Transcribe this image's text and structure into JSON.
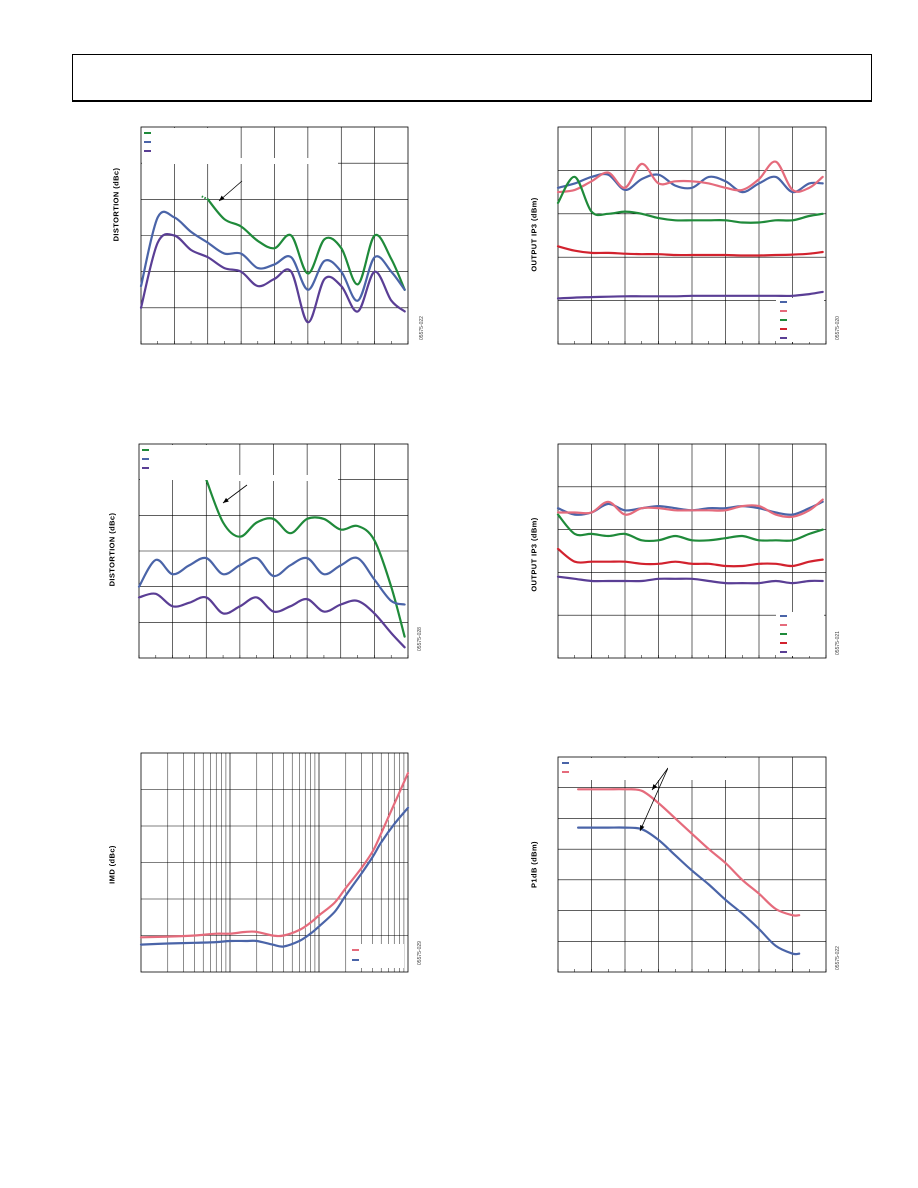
{
  "page": {
    "figure_ids": [
      "05575-022",
      "05575-020",
      "05575-028",
      "05575-021",
      "05575-029",
      "05575-022"
    ]
  },
  "colors": {
    "green": "#1f8a3a",
    "blue": "#4a64a8",
    "purple": "#5a3e95",
    "pink": "#e56b7c",
    "red": "#d2222e",
    "grid": "#000000"
  },
  "chart_data": [
    {
      "id": "distortion-top",
      "type": "line",
      "ylabel": "DISTORTION (dBc)",
      "grid": true,
      "legend_position": "top-left",
      "x": [
        0,
        0.5,
        1,
        1.5,
        2,
        2.5,
        3,
        3.5,
        4,
        4.5,
        5,
        5.5,
        6,
        6.5,
        7,
        7.5,
        7.9
      ],
      "ylim": [
        0,
        6
      ],
      "series": [
        {
          "color": "green",
          "values": [
            null,
            null,
            null,
            null,
            4.0,
            3.45,
            3.25,
            2.85,
            2.65,
            3.0,
            1.95,
            2.9,
            2.65,
            1.65,
            3.0,
            2.35,
            1.5
          ]
        },
        {
          "color": "blue",
          "values": [
            1.6,
            3.5,
            3.5,
            3.1,
            2.8,
            2.5,
            2.5,
            2.1,
            2.2,
            2.4,
            1.5,
            2.3,
            2.0,
            1.2,
            2.4,
            2.0,
            1.5
          ]
        },
        {
          "color": "purple",
          "values": [
            1.0,
            2.8,
            3.0,
            2.6,
            2.4,
            2.1,
            2.0,
            1.6,
            1.8,
            2.0,
            0.6,
            1.8,
            1.6,
            0.9,
            2.0,
            1.2,
            0.9
          ]
        }
      ]
    },
    {
      "id": "oip3-top",
      "type": "line",
      "ylabel": "OUTPUT IP3 (dBm)",
      "grid": true,
      "legend_position": "bottom-right",
      "x": [
        0,
        0.5,
        1,
        1.5,
        2,
        2.5,
        3,
        3.5,
        4,
        4.5,
        5,
        5.5,
        6,
        6.5,
        7,
        7.5,
        7.9
      ],
      "ylim": [
        0,
        5
      ],
      "series": [
        {
          "color": "blue",
          "values": [
            3.6,
            3.7,
            3.85,
            3.9,
            3.55,
            3.8,
            3.9,
            3.65,
            3.6,
            3.85,
            3.75,
            3.5,
            3.7,
            3.85,
            3.5,
            3.7,
            3.7
          ]
        },
        {
          "color": "pink",
          "values": [
            3.5,
            3.55,
            3.75,
            3.95,
            3.6,
            4.15,
            3.7,
            3.75,
            3.75,
            3.7,
            3.6,
            3.55,
            3.8,
            4.2,
            3.55,
            3.6,
            3.85
          ]
        },
        {
          "color": "green",
          "values": [
            3.25,
            3.85,
            3.05,
            3.0,
            3.05,
            3.0,
            2.9,
            2.85,
            2.85,
            2.85,
            2.85,
            2.8,
            2.8,
            2.85,
            2.85,
            2.95,
            3.0
          ]
        },
        {
          "color": "red",
          "values": [
            2.25,
            2.15,
            2.1,
            2.1,
            2.08,
            2.07,
            2.07,
            2.05,
            2.05,
            2.05,
            2.05,
            2.04,
            2.04,
            2.05,
            2.06,
            2.08,
            2.12
          ]
        },
        {
          "color": "purple",
          "values": [
            1.05,
            1.07,
            1.08,
            1.09,
            1.1,
            1.1,
            1.1,
            1.1,
            1.11,
            1.11,
            1.11,
            1.11,
            1.11,
            1.11,
            1.11,
            1.15,
            1.2
          ]
        }
      ]
    },
    {
      "id": "distortion-mid",
      "type": "line",
      "ylabel": "DISTORTION (dBc)",
      "grid": true,
      "legend_position": "top-left",
      "x": [
        0,
        0.5,
        1,
        1.5,
        2,
        2.5,
        3,
        3.5,
        4,
        4.5,
        5,
        5.5,
        6,
        6.5,
        7,
        7.5,
        7.9
      ],
      "ylim": [
        0,
        6
      ],
      "series": [
        {
          "color": "green",
          "values": [
            null,
            null,
            null,
            null,
            5.0,
            3.8,
            3.4,
            3.8,
            3.9,
            3.5,
            3.9,
            3.9,
            3.6,
            3.7,
            3.3,
            2.0,
            0.6
          ]
        },
        {
          "color": "blue",
          "values": [
            2.0,
            2.75,
            2.35,
            2.6,
            2.8,
            2.35,
            2.6,
            2.8,
            2.3,
            2.6,
            2.8,
            2.35,
            2.6,
            2.8,
            2.2,
            1.6,
            1.5
          ]
        },
        {
          "color": "purple",
          "values": [
            1.7,
            1.8,
            1.45,
            1.55,
            1.7,
            1.25,
            1.45,
            1.7,
            1.3,
            1.45,
            1.65,
            1.3,
            1.5,
            1.6,
            1.25,
            0.7,
            0.3
          ]
        }
      ]
    },
    {
      "id": "oip3-mid",
      "type": "line",
      "ylabel": "OUTPUT IP3 (dBm)",
      "grid": true,
      "legend_position": "bottom-right",
      "x": [
        0,
        0.5,
        1,
        1.5,
        2,
        2.5,
        3,
        3.5,
        4,
        4.5,
        5,
        5.5,
        6,
        6.5,
        7,
        7.5,
        7.9
      ],
      "ylim": [
        0,
        5
      ],
      "series": [
        {
          "color": "blue",
          "values": [
            3.5,
            3.35,
            3.4,
            3.6,
            3.45,
            3.5,
            3.55,
            3.5,
            3.45,
            3.5,
            3.5,
            3.55,
            3.5,
            3.4,
            3.35,
            3.5,
            3.65
          ]
        },
        {
          "color": "pink",
          "values": [
            3.4,
            3.4,
            3.4,
            3.65,
            3.35,
            3.5,
            3.5,
            3.45,
            3.45,
            3.45,
            3.45,
            3.55,
            3.55,
            3.35,
            3.3,
            3.45,
            3.7
          ]
        },
        {
          "color": "green",
          "values": [
            3.35,
            2.9,
            2.9,
            2.85,
            2.9,
            2.75,
            2.75,
            2.85,
            2.75,
            2.75,
            2.8,
            2.85,
            2.75,
            2.75,
            2.75,
            2.9,
            3.0
          ]
        },
        {
          "color": "red",
          "values": [
            2.55,
            2.25,
            2.25,
            2.25,
            2.25,
            2.2,
            2.2,
            2.25,
            2.2,
            2.2,
            2.15,
            2.15,
            2.2,
            2.2,
            2.15,
            2.25,
            2.3
          ]
        },
        {
          "color": "purple",
          "values": [
            1.9,
            1.85,
            1.8,
            1.8,
            1.8,
            1.8,
            1.85,
            1.85,
            1.85,
            1.8,
            1.75,
            1.75,
            1.75,
            1.8,
            1.75,
            1.8,
            1.8
          ]
        }
      ]
    },
    {
      "id": "imd",
      "type": "line",
      "ylabel": "IMD (dBc)",
      "grid": true,
      "xscale": "log",
      "legend_position": "bottom-right",
      "x": [
        1,
        2,
        4,
        7,
        10,
        15,
        20,
        30,
        40,
        60,
        80,
        100,
        150,
        200,
        300,
        400,
        500,
        700,
        1000
      ],
      "ylim": [
        0,
        6
      ],
      "series": [
        {
          "color": "pink",
          "values": [
            0.95,
            0.97,
            1.0,
            1.05,
            1.05,
            1.1,
            1.1,
            1.0,
            1.0,
            1.15,
            1.35,
            1.55,
            1.9,
            2.3,
            2.85,
            3.3,
            3.8,
            4.6,
            5.45
          ]
        },
        {
          "color": "blue",
          "values": [
            0.75,
            0.78,
            0.8,
            0.82,
            0.85,
            0.85,
            0.85,
            0.75,
            0.7,
            0.85,
            1.05,
            1.25,
            1.65,
            2.1,
            2.7,
            3.15,
            3.55,
            4.05,
            4.5
          ]
        }
      ]
    },
    {
      "id": "p1db",
      "type": "line",
      "ylabel": "P1dB (dBm)",
      "grid": true,
      "legend_position": "top-left",
      "x": [
        0.6,
        1,
        1.5,
        2,
        2.5,
        3,
        3.5,
        4,
        4.5,
        5,
        5.5,
        6,
        6.5,
        7,
        7.2
      ],
      "ylim": [
        0,
        7
      ],
      "series": [
        {
          "color": "pink",
          "values": [
            5.95,
            5.95,
            5.95,
            5.95,
            5.9,
            5.5,
            5.0,
            4.5,
            4.0,
            3.55,
            3.0,
            2.55,
            2.05,
            1.85,
            1.85
          ]
        },
        {
          "color": "blue",
          "values": [
            4.7,
            4.7,
            4.7,
            4.7,
            4.65,
            4.3,
            3.8,
            3.3,
            2.85,
            2.35,
            1.9,
            1.4,
            0.85,
            0.6,
            0.6
          ]
        }
      ]
    }
  ]
}
